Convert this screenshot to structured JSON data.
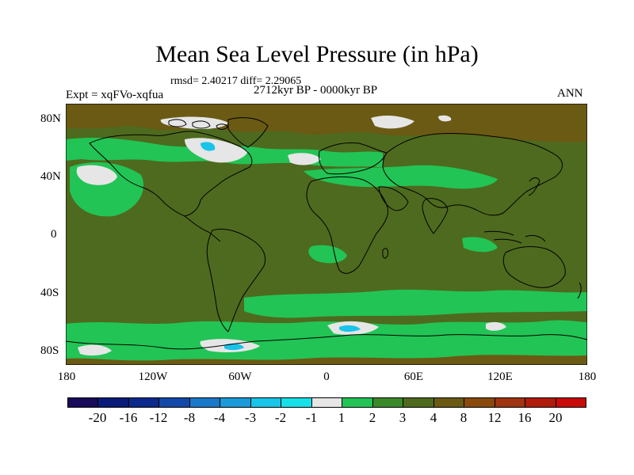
{
  "title": "Mean Sea Level Pressure (in hPa)",
  "stats": "rmsd= 2.40217 diff= 2.29065",
  "subtitle": "2712kyr BP - 0000kyr BP",
  "expt_label": "Expt = xqFVo-xqfua",
  "season": "ANN",
  "lat_labels": [
    "80N",
    "40N",
    "0",
    "40S",
    "80S"
  ],
  "lon_labels": [
    "180",
    "120W",
    "60W",
    "0",
    "60E",
    "120E",
    "180"
  ],
  "colorbar": {
    "colors": [
      "#1a0a5a",
      "#0a1a78",
      "#0c2a8c",
      "#1248a8",
      "#1a78c8",
      "#1a9ad8",
      "#18c4e8",
      "#18e0e8",
      "#e6e6e6",
      "#22c455",
      "#3a8a2a",
      "#4e6a1e",
      "#6a5a14",
      "#8a4a0c",
      "#9e3410",
      "#b01a0a",
      "#c80a0a"
    ],
    "labels": [
      "-20",
      "-16",
      "-12",
      "-8",
      "-4",
      "-3",
      "-2",
      "-1",
      "1",
      "2",
      "3",
      "4",
      "8",
      "12",
      "16",
      "20"
    ]
  },
  "legend_colors": {
    "background": "#4e6a1e",
    "positive_high": "#6a5a14",
    "positive_mid": "#3a8a2a",
    "light_green": "#22c455",
    "near_zero": "#e6e6e6",
    "negative": "#18c4e8"
  }
}
